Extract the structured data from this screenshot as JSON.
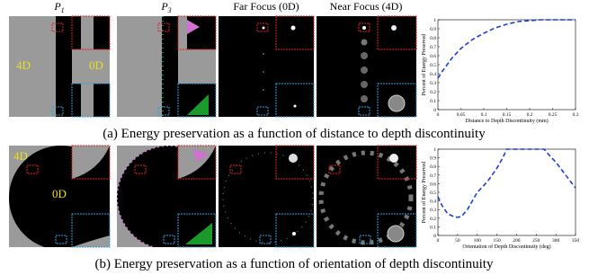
{
  "figure": {
    "columns": [
      {
        "main": "P",
        "sub": "1"
      },
      {
        "main": "P",
        "sub": "3"
      },
      {
        "main": "Far Focus (0D)"
      },
      {
        "main": "Near Focus (4D)"
      }
    ],
    "rows": [
      {
        "labels": [
          "4D",
          "0D"
        ],
        "caption": "(a) Energy preservation as a function of distance to depth discontinuity",
        "chart": {
          "type": "line",
          "xlabel": "Distance to Depth Discontinuity (mm)",
          "ylabel": "Percent of Energy Preserved",
          "x": [
            0,
            0.01,
            0.02,
            0.03,
            0.05,
            0.075,
            0.1,
            0.125,
            0.15,
            0.175,
            0.2,
            0.225,
            0.25,
            0.3
          ],
          "values": [
            0.35,
            0.43,
            0.5,
            0.57,
            0.68,
            0.78,
            0.85,
            0.91,
            0.95,
            0.98,
            0.99,
            1,
            1,
            1
          ],
          "color": "#1a3fd6",
          "dashed": true,
          "xlim": [
            0,
            0.3
          ],
          "xticks": [
            0,
            0.05,
            0.1,
            0.15,
            0.2,
            0.25,
            0.3
          ],
          "ylim": [
            0,
            1
          ],
          "yticks": [
            0,
            0.1,
            0.2,
            0.3,
            0.4,
            0.5,
            0.6,
            0.7,
            0.8,
            0.9,
            1
          ]
        }
      },
      {
        "labels": [
          "4D",
          "0D"
        ],
        "caption": "(b) Energy preservation as a function of orientation of depth discontinuity",
        "chart": {
          "type": "line",
          "xlabel": "Orientation of Depth Discontinuity (deg)",
          "ylabel": "Percent of Energy Preserved",
          "x": [
            0,
            10,
            25,
            40,
            50,
            60,
            75,
            90,
            100,
            115,
            130,
            150,
            165,
            175,
            200,
            225,
            250,
            270,
            285,
            300,
            325,
            350
          ],
          "values": [
            0.45,
            0.35,
            0.25,
            0.22,
            0.21,
            0.22,
            0.3,
            0.42,
            0.5,
            0.57,
            0.65,
            0.78,
            0.9,
            1,
            1,
            1,
            1,
            1,
            0.92,
            0.85,
            0.7,
            0.55
          ],
          "color": "#1a3fd6",
          "dashed": true,
          "xlim": [
            0,
            350
          ],
          "xticks": [
            0,
            50,
            100,
            150,
            200,
            250,
            300,
            350
          ],
          "ylim": [
            0,
            1
          ],
          "yticks": [
            0,
            0.1,
            0.2,
            0.3,
            0.4,
            0.5,
            0.6,
            0.7,
            0.8,
            0.9,
            1
          ]
        }
      }
    ]
  }
}
